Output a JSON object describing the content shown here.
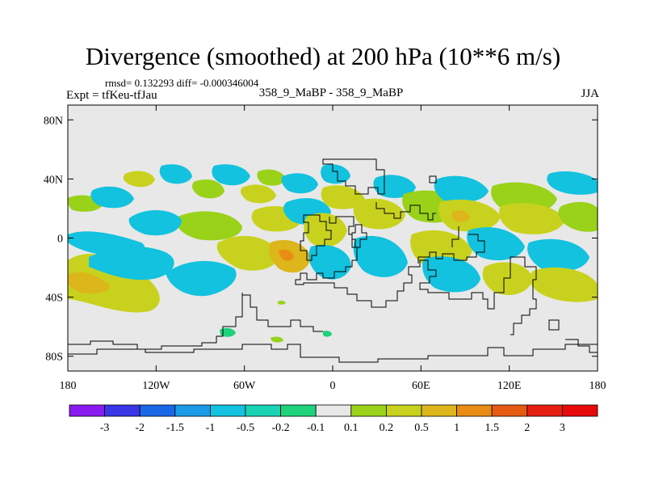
{
  "title": "Divergence (smoothed) at 200 hPa (10**6 m/s)",
  "stats_line": "rmsd= 0.132293 diff= -0.000346004",
  "expt_label": "Expt = tfKeu-tfJau",
  "center_label": "358_9_MaBP - 358_9_MaBP",
  "season": "JJA",
  "map": {
    "projection": "cylindrical equidistant",
    "lon_range": [
      -180,
      180
    ],
    "lat_range": [
      -90,
      90
    ],
    "lat_ticks": [
      {
        "value": 80,
        "label": "80N"
      },
      {
        "value": 40,
        "label": "40N"
      },
      {
        "value": 0,
        "label": "0"
      },
      {
        "value": -40,
        "label": "40S"
      },
      {
        "value": -80,
        "label": "80S"
      }
    ],
    "lon_ticks": [
      {
        "value": -180,
        "label": "180"
      },
      {
        "value": -120,
        "label": "120W"
      },
      {
        "value": -60,
        "label": "60W"
      },
      {
        "value": 0,
        "label": "0"
      },
      {
        "value": 60,
        "label": "60E"
      },
      {
        "value": 120,
        "label": "120E"
      },
      {
        "value": 180,
        "label": "180"
      }
    ],
    "background_color": "#e8e8e8"
  },
  "colorbar": {
    "labels": [
      "-3",
      "-2",
      "-1.5",
      "-1",
      "-0.5",
      "-0.2",
      "-0.1",
      "0.1",
      "0.2",
      "0.5",
      "1",
      "1.5",
      "2",
      "3"
    ],
    "colors": [
      "#8a1bf0",
      "#3a35e6",
      "#1a68e8",
      "#1a9be8",
      "#12c2de",
      "#18d3b4",
      "#1ed27c",
      "#e8e8e8",
      "#9ad21a",
      "#c8d21e",
      "#dcb61a",
      "#e88c14",
      "#e65a12",
      "#e61e12",
      "#e60a0a"
    ]
  }
}
